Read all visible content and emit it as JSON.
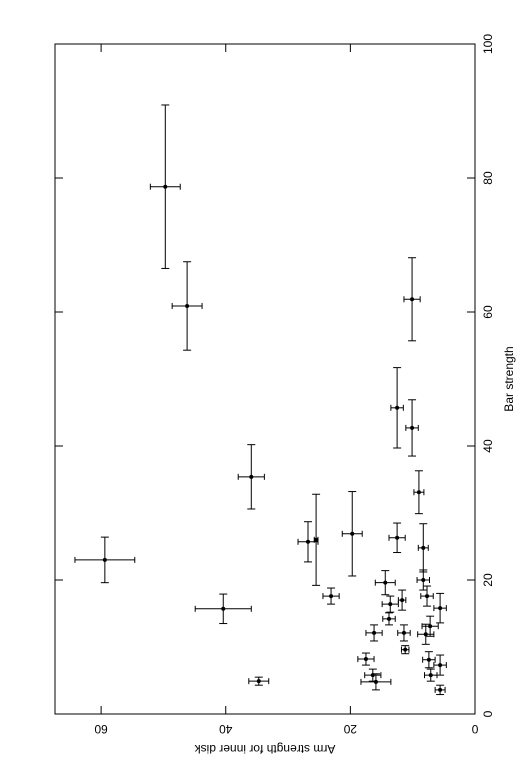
{
  "chart_data": {
    "type": "scatter",
    "xlabel": "Bar strength",
    "ylabel": "Arm strength for inner disk",
    "x": [
      23.0,
      78.7,
      60.9,
      35.4,
      15.7,
      4.9,
      25.7,
      26.0,
      26.9,
      17.6,
      19.6,
      45.7,
      26.3,
      42.7,
      33.1,
      24.8,
      61.9,
      16.4,
      17.0,
      12.1,
      9.6,
      14.2,
      12.1,
      8.2,
      5.8,
      4.8,
      20.0,
      17.6,
      11.9,
      13.1,
      8.1,
      5.8,
      7.3,
      15.8,
      3.6
    ],
    "xerr": [
      3.4,
      12.2,
      6.6,
      4.8,
      2.2,
      0.6,
      3.0,
      6.8,
      6.3,
      1.2,
      1.8,
      6.0,
      2.2,
      4.2,
      3.2,
      3.6,
      6.2,
      1.2,
      1.5,
      1.2,
      0.6,
      0.9,
      1.2,
      0.9,
      0.9,
      1.2,
      1.5,
      1.5,
      1.5,
      1.5,
      1.2,
      0.9,
      1.5,
      2.2,
      0.7
    ],
    "y": [
      59.4,
      49.7,
      46.2,
      35.9,
      40.4,
      34.7,
      26.8,
      25.5,
      19.7,
      23.1,
      14.4,
      12.5,
      12.5,
      10.1,
      9.0,
      8.3,
      10.1,
      13.6,
      11.7,
      11.4,
      11.2,
      13.8,
      16.2,
      17.5,
      16.4,
      15.9,
      8.3,
      7.7,
      7.9,
      7.2,
      7.4,
      7.1,
      5.6,
      5.6,
      5.6
    ],
    "yerr": [
      4.8,
      2.4,
      2.4,
      2.1,
      4.5,
      1.6,
      1.6,
      0.3,
      1.6,
      1.3,
      1.6,
      1.0,
      1.3,
      1.0,
      0.8,
      0.8,
      1.3,
      1.3,
      0.6,
      1.0,
      0.6,
      1.0,
      1.3,
      1.3,
      1.3,
      2.4,
      1.0,
      1.0,
      1.3,
      1.3,
      1.0,
      1.0,
      1.0,
      1.0,
      0.8
    ],
    "xlim": [
      0,
      100
    ],
    "xticks": [
      0,
      20,
      40,
      60,
      80,
      100
    ],
    "ylim": [
      0,
      67.4
    ],
    "yticks": [
      0,
      20,
      40,
      60
    ],
    "color": "#000000"
  }
}
